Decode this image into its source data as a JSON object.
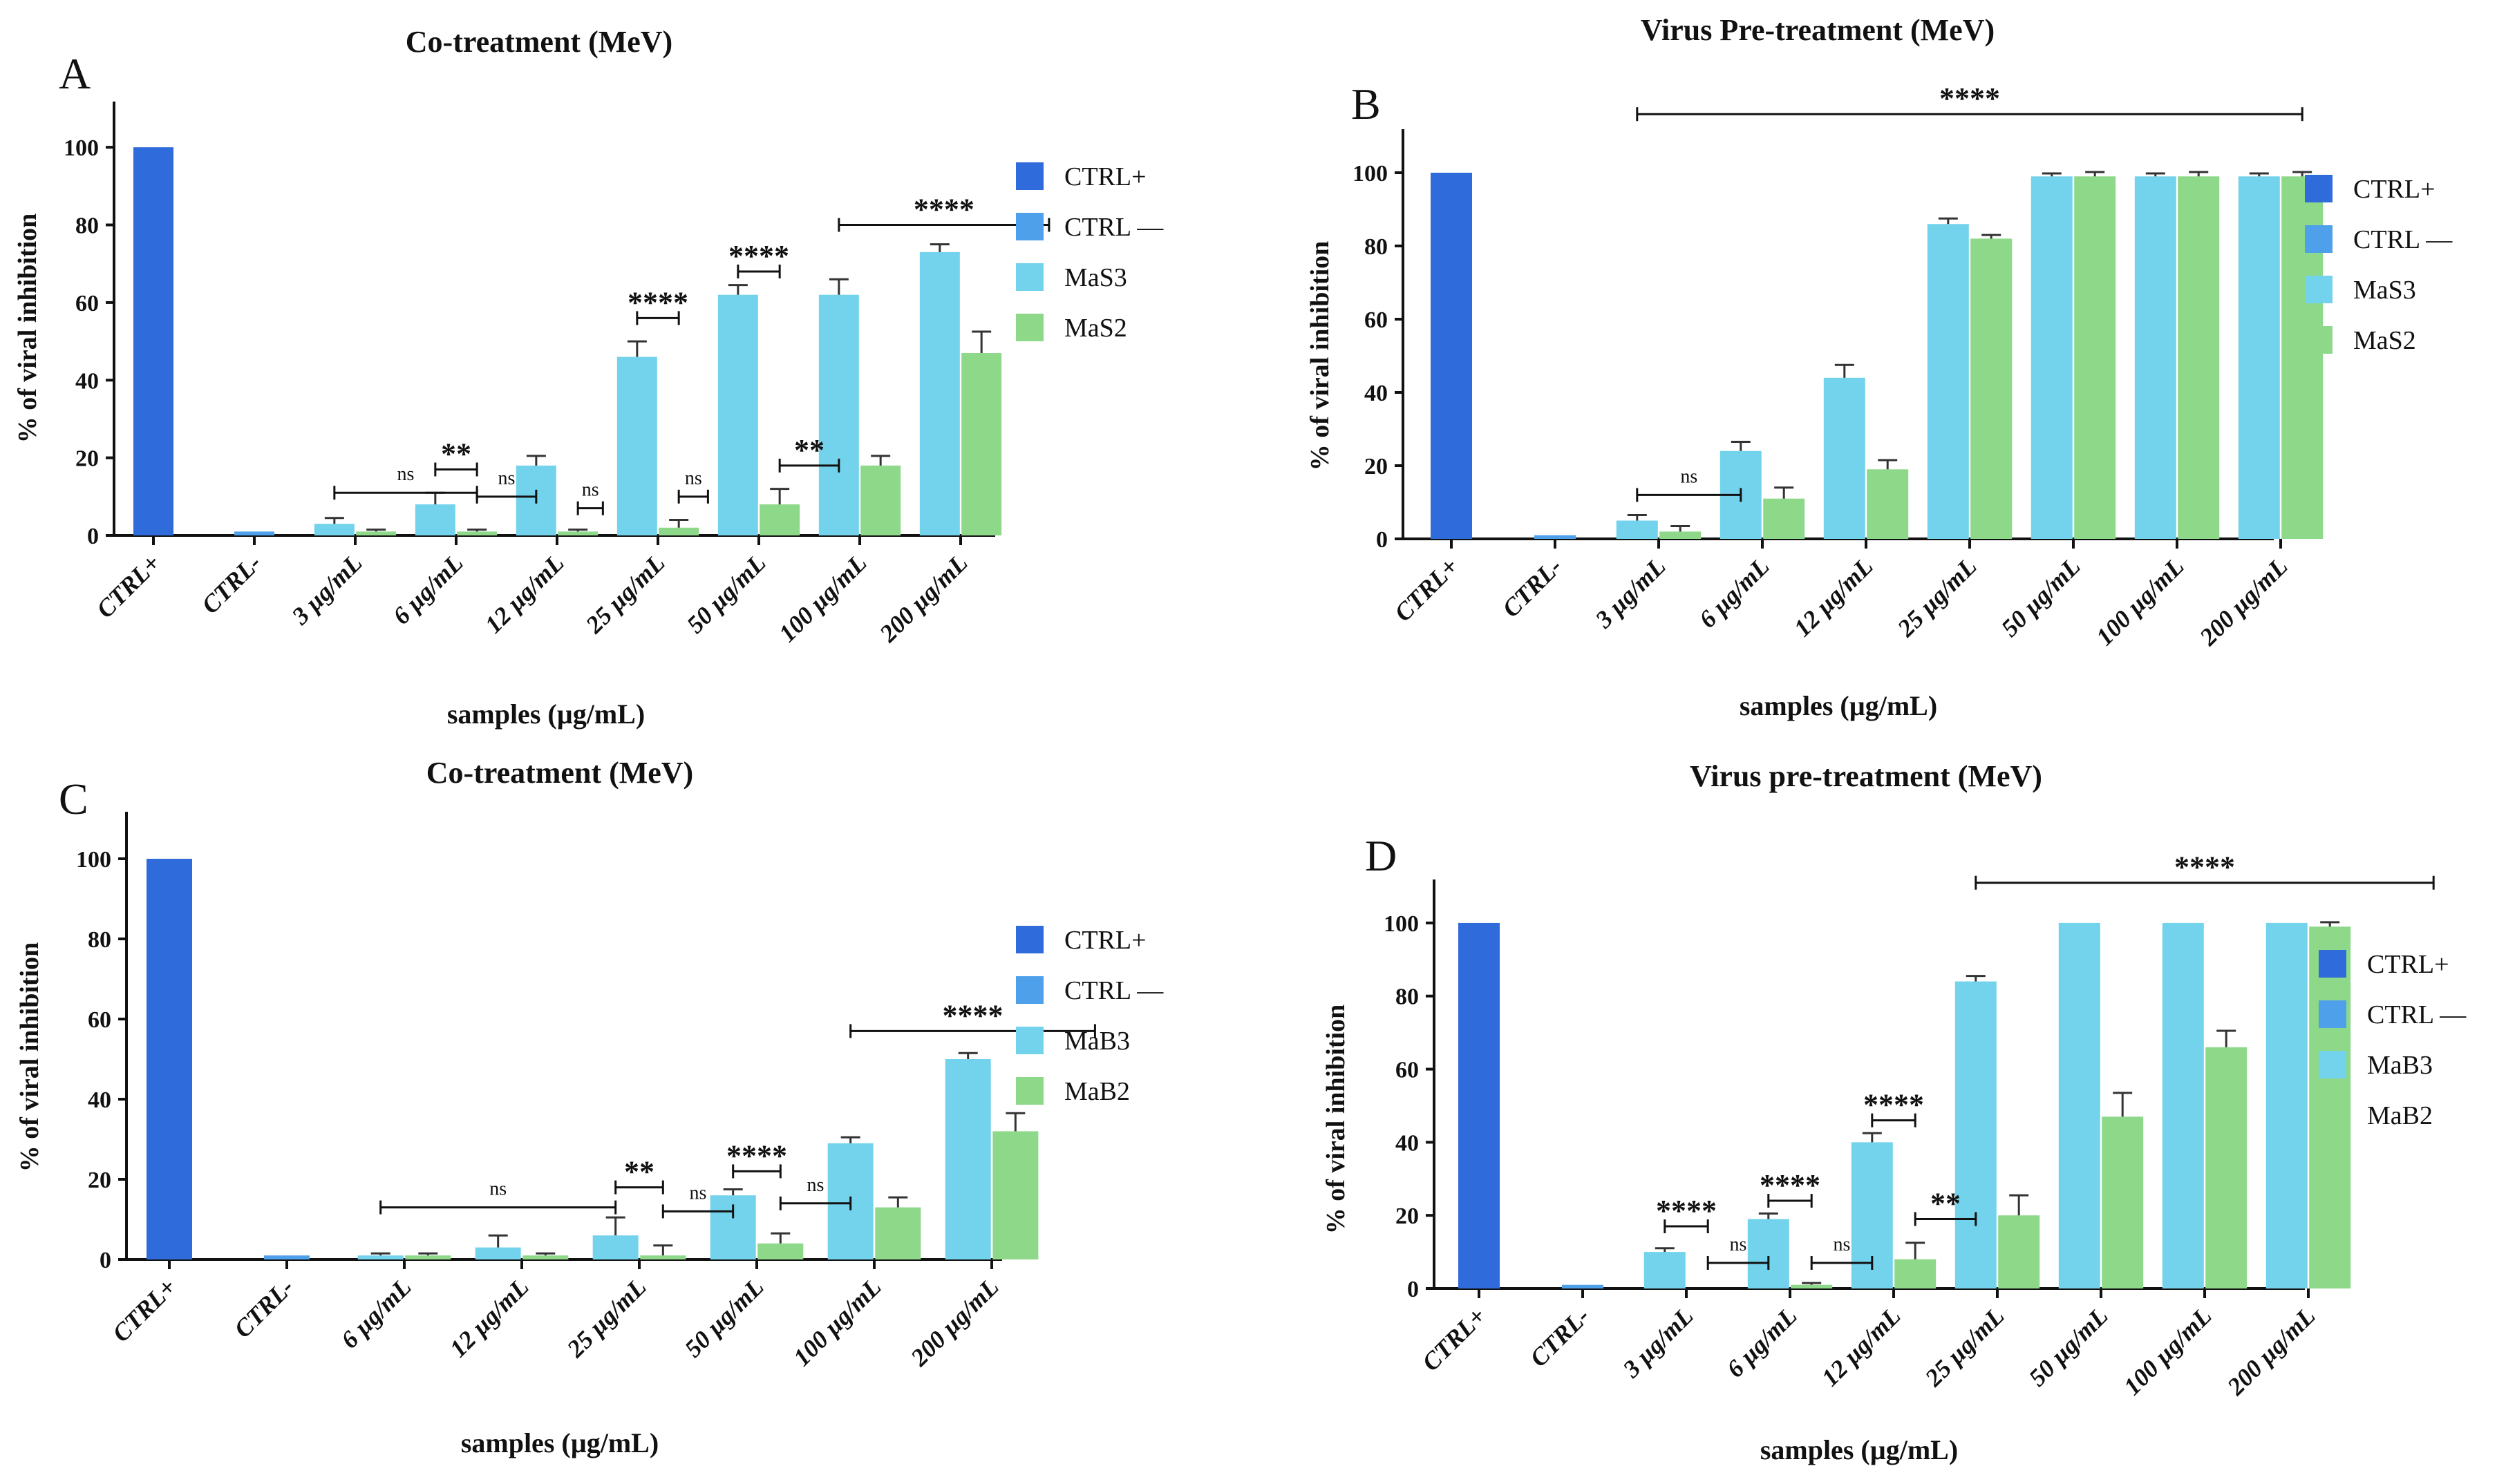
{
  "colors": {
    "ctrl_pos": "#2F6BDA",
    "ctrl_neg": "#4FA0EA",
    "treat_a": "#74D3EC",
    "treat_b": "#8ED88A",
    "axis": "#111111",
    "error": "#333333"
  },
  "chart_data": [
    {
      "type": "bar",
      "panel_label": "A",
      "title": "Co-treatment  (MeV)",
      "xlabel": "samples (µg/mL)",
      "ylabel": "% of viral inhibition",
      "ylim": [
        0,
        110
      ],
      "yticks": [
        "0",
        "20",
        "40",
        "60",
        "80",
        "100"
      ],
      "categories": [
        "CTRL+",
        "CTRL-",
        "3 µg/mL",
        "6 µg/mL",
        "12 µg/mL",
        "25 µg/mL",
        "50 µg/mL",
        "100 µg/mL",
        "200 µg/mL"
      ],
      "legend": [
        "CTRL+",
        "CTRL —",
        "MaS3",
        "MaS2"
      ],
      "bars": [
        {
          "cat": 0,
          "slot": 0,
          "series": 0,
          "value": 100,
          "err": 0
        },
        {
          "cat": 1,
          "slot": 0,
          "series": 1,
          "value": 1,
          "err": 0
        },
        {
          "cat": 2,
          "slot": 0,
          "series": 2,
          "value": 3,
          "err": 1.5
        },
        {
          "cat": 2,
          "slot": 1,
          "series": 3,
          "value": 1,
          "err": 0.5
        },
        {
          "cat": 3,
          "slot": 0,
          "series": 2,
          "value": 8,
          "err": 3
        },
        {
          "cat": 3,
          "slot": 1,
          "series": 3,
          "value": 1,
          "err": 0.5
        },
        {
          "cat": 4,
          "slot": 0,
          "series": 2,
          "value": 18,
          "err": 2.5
        },
        {
          "cat": 4,
          "slot": 1,
          "series": 3,
          "value": 1,
          "err": 0.5
        },
        {
          "cat": 5,
          "slot": 0,
          "series": 2,
          "value": 46,
          "err": 4
        },
        {
          "cat": 5,
          "slot": 1,
          "series": 3,
          "value": 2,
          "err": 2
        },
        {
          "cat": 6,
          "slot": 0,
          "series": 2,
          "value": 62,
          "err": 2.5
        },
        {
          "cat": 6,
          "slot": 1,
          "series": 3,
          "value": 8,
          "err": 4
        },
        {
          "cat": 7,
          "slot": 0,
          "series": 2,
          "value": 62,
          "err": 4
        },
        {
          "cat": 7,
          "slot": 1,
          "series": 3,
          "value": 18,
          "err": 2.5
        },
        {
          "cat": 8,
          "slot": 0,
          "series": 2,
          "value": 73,
          "err": 2
        },
        {
          "cat": 8,
          "slot": 1,
          "series": 3,
          "value": 47,
          "err": 5.5
        }
      ],
      "annotations": [
        {
          "text": "ns",
          "x1": 2,
          "x2": 3.5,
          "y": 11
        },
        {
          "text": "**",
          "x1": 3,
          "x2": 3.5,
          "y": 17
        },
        {
          "text": "ns",
          "x1": 3.5,
          "x2": 4,
          "y": 10
        },
        {
          "text": "ns",
          "x1": 4.5,
          "x2": 4.8,
          "y": 7
        },
        {
          "text": "****",
          "x1": 5,
          "x2": 5.5,
          "y": 56
        },
        {
          "text": "ns",
          "x1": 5.5,
          "x2": 5.85,
          "y": 10
        },
        {
          "text": "****",
          "x1": 6,
          "x2": 6.5,
          "y": 68
        },
        {
          "text": "**",
          "x1": 6.5,
          "x2": 7,
          "y": 18
        },
        {
          "text": "****",
          "x1": 7,
          "x2": 9.1,
          "y": 80
        }
      ]
    },
    {
      "type": "bar",
      "panel_label": "B",
      "title": "Virus Pre-treatment (MeV)",
      "xlabel": "samples (µg/mL)",
      "ylabel": "% of viral inhibition",
      "ylim": [
        0,
        110
      ],
      "yticks": [
        "0",
        "20",
        "40",
        "60",
        "80",
        "100"
      ],
      "categories": [
        "CTRL+",
        "CTRL-",
        "3 µg/mL",
        "6 µg/mL",
        "12 µg/mL",
        "25 µg/mL",
        "50 µg/mL",
        "100 µg/mL",
        "200 µg/mL"
      ],
      "legend": [
        "CTRL+",
        "CTRL —",
        "MaS3",
        "MaS2"
      ],
      "bars": [
        {
          "cat": 0,
          "slot": 0,
          "series": 0,
          "value": 100,
          "err": 0
        },
        {
          "cat": 1,
          "slot": 0,
          "series": 1,
          "value": 1,
          "err": 0
        },
        {
          "cat": 2,
          "slot": 0,
          "series": 2,
          "value": 5,
          "err": 1.5
        },
        {
          "cat": 2,
          "slot": 1,
          "series": 3,
          "value": 2,
          "err": 1.5
        },
        {
          "cat": 3,
          "slot": 0,
          "series": 2,
          "value": 24,
          "err": 2.5
        },
        {
          "cat": 3,
          "slot": 1,
          "series": 3,
          "value": 11,
          "err": 3
        },
        {
          "cat": 4,
          "slot": 0,
          "series": 2,
          "value": 44,
          "err": 3.5
        },
        {
          "cat": 4,
          "slot": 1,
          "series": 3,
          "value": 19,
          "err": 2.5
        },
        {
          "cat": 5,
          "slot": 0,
          "series": 2,
          "value": 86,
          "err": 1.5
        },
        {
          "cat": 5,
          "slot": 1,
          "series": 3,
          "value": 82,
          "err": 1
        },
        {
          "cat": 6,
          "slot": 0,
          "series": 2,
          "value": 99,
          "err": 0.8
        },
        {
          "cat": 6,
          "slot": 1,
          "series": 3,
          "value": 99,
          "err": 1.2
        },
        {
          "cat": 7,
          "slot": 0,
          "series": 2,
          "value": 99,
          "err": 0.8
        },
        {
          "cat": 7,
          "slot": 1,
          "series": 3,
          "value": 99,
          "err": 1.2
        },
        {
          "cat": 8,
          "slot": 0,
          "series": 2,
          "value": 99,
          "err": 0.8
        },
        {
          "cat": 8,
          "slot": 1,
          "series": 3,
          "value": 99,
          "err": 1.2
        }
      ],
      "annotations": [
        {
          "text": "ns",
          "x1": 2,
          "x2": 3,
          "y": 12
        },
        {
          "text": "****",
          "x1": 2,
          "x2": 8.5,
          "y": 116
        }
      ]
    },
    {
      "type": "bar",
      "panel_label": "C",
      "title": "Co-treatment  (MeV)",
      "xlabel": "samples (µg/mL)",
      "ylabel": "% of viral inhibition",
      "ylim": [
        0,
        110
      ],
      "yticks": [
        "0",
        "20",
        "40",
        "60",
        "80",
        "100"
      ],
      "categories": [
        "CTRL+",
        "CTRL-",
        "6 µg/mL",
        "12 µg/mL",
        "25 µg/mL",
        "50 µg/mL",
        "100 µg/mL",
        "200 µg/mL"
      ],
      "legend": [
        "CTRL+",
        "CTRL —",
        "MaB3",
        "MaB2"
      ],
      "bars": [
        {
          "cat": 0,
          "slot": 0,
          "series": 0,
          "value": 100,
          "err": 0
        },
        {
          "cat": 1,
          "slot": 0,
          "series": 1,
          "value": 1,
          "err": 0
        },
        {
          "cat": 2,
          "slot": 0,
          "series": 2,
          "value": 1,
          "err": 0.5
        },
        {
          "cat": 2,
          "slot": 1,
          "series": 3,
          "value": 1,
          "err": 0.5
        },
        {
          "cat": 3,
          "slot": 0,
          "series": 2,
          "value": 3,
          "err": 3
        },
        {
          "cat": 3,
          "slot": 1,
          "series": 3,
          "value": 1,
          "err": 0.5
        },
        {
          "cat": 4,
          "slot": 0,
          "series": 2,
          "value": 6,
          "err": 4.5
        },
        {
          "cat": 4,
          "slot": 1,
          "series": 3,
          "value": 1,
          "err": 2.5
        },
        {
          "cat": 5,
          "slot": 0,
          "series": 2,
          "value": 16,
          "err": 1.5
        },
        {
          "cat": 5,
          "slot": 1,
          "series": 3,
          "value": 4,
          "err": 2.5
        },
        {
          "cat": 6,
          "slot": 0,
          "series": 2,
          "value": 29,
          "err": 1.5
        },
        {
          "cat": 6,
          "slot": 1,
          "series": 3,
          "value": 13,
          "err": 2.5
        },
        {
          "cat": 7,
          "slot": 0,
          "series": 2,
          "value": 50,
          "err": 1.5
        },
        {
          "cat": 7,
          "slot": 1,
          "series": 3,
          "value": 32,
          "err": 4.5
        }
      ],
      "annotations": [
        {
          "text": "ns",
          "x1": 2,
          "x2": 4,
          "y": 13
        },
        {
          "text": "**",
          "x1": 4,
          "x2": 4.5,
          "y": 18
        },
        {
          "text": "ns",
          "x1": 4.5,
          "x2": 5,
          "y": 12
        },
        {
          "text": "****",
          "x1": 5,
          "x2": 5.5,
          "y": 22
        },
        {
          "text": "ns",
          "x1": 5.5,
          "x2": 6,
          "y": 14
        },
        {
          "text": "****",
          "x1": 6,
          "x2": 8.1,
          "y": 57
        }
      ]
    },
    {
      "type": "bar",
      "panel_label": "D",
      "title": "Virus pre-treatment (MeV)",
      "xlabel": "samples (µg/mL)",
      "ylabel": "% of viral inhibition",
      "ylim": [
        0,
        110
      ],
      "yticks": [
        "0",
        "20",
        "40",
        "60",
        "80",
        "100"
      ],
      "categories": [
        "CTRL+",
        "CTRL-",
        "3 µg/mL",
        "6 µg/mL",
        "12 µg/mL",
        "25 µg/mL",
        "50 µg/mL",
        "100 µg/mL",
        "200 µg/mL"
      ],
      "legend": [
        "CTRL+",
        "CTRL —",
        "MaB3",
        "MaB2"
      ],
      "bars": [
        {
          "cat": 0,
          "slot": 0,
          "series": 0,
          "value": 100,
          "err": 0
        },
        {
          "cat": 1,
          "slot": 0,
          "series": 1,
          "value": 1,
          "err": 0
        },
        {
          "cat": 2,
          "slot": 0,
          "series": 2,
          "value": 10,
          "err": 1
        },
        {
          "cat": 3,
          "slot": 0,
          "series": 2,
          "value": 19,
          "err": 1.5
        },
        {
          "cat": 3,
          "slot": 1,
          "series": 3,
          "value": 1,
          "err": 0.5
        },
        {
          "cat": 4,
          "slot": 0,
          "series": 2,
          "value": 40,
          "err": 2.5
        },
        {
          "cat": 4,
          "slot": 1,
          "series": 3,
          "value": 8,
          "err": 4.5
        },
        {
          "cat": 5,
          "slot": 0,
          "series": 2,
          "value": 84,
          "err": 1.5
        },
        {
          "cat": 5,
          "slot": 1,
          "series": 3,
          "value": 20,
          "err": 5.5
        },
        {
          "cat": 6,
          "slot": 0,
          "series": 2,
          "value": 100,
          "err": 0
        },
        {
          "cat": 6,
          "slot": 1,
          "series": 3,
          "value": 47,
          "err": 6.5
        },
        {
          "cat": 7,
          "slot": 0,
          "series": 2,
          "value": 100,
          "err": 0
        },
        {
          "cat": 7,
          "slot": 1,
          "series": 3,
          "value": 66,
          "err": 4.5
        },
        {
          "cat": 8,
          "slot": 0,
          "series": 2,
          "value": 100,
          "err": 0
        },
        {
          "cat": 8,
          "slot": 1,
          "series": 3,
          "value": 99,
          "err": 1.2
        }
      ],
      "annotations": [
        {
          "text": "****",
          "x1": 2,
          "x2": 2.5,
          "y": 17
        },
        {
          "text": "ns",
          "x1": 2.5,
          "x2": 3,
          "y": 7
        },
        {
          "text": "****",
          "x1": 3,
          "x2": 3.5,
          "y": 24
        },
        {
          "text": "ns",
          "x1": 3.5,
          "x2": 4,
          "y": 7
        },
        {
          "text": "****",
          "x1": 4,
          "x2": 4.5,
          "y": 46
        },
        {
          "text": "**",
          "x1": 4.5,
          "x2": 5,
          "y": 19
        },
        {
          "text": "****",
          "x1": 5,
          "x2": 9.5,
          "y": 111
        }
      ]
    }
  ]
}
